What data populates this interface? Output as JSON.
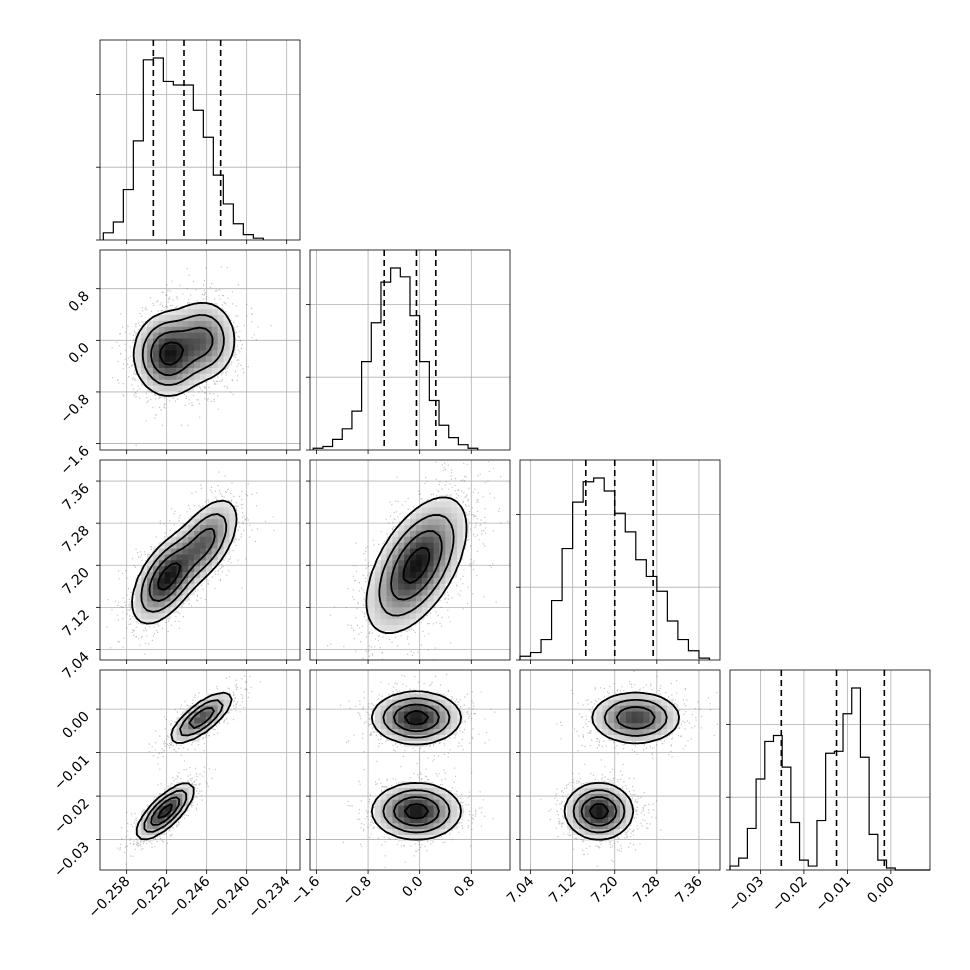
{
  "chart_data": {
    "type": "corner",
    "grid": true,
    "parameters": [
      {
        "index": 0,
        "range": [
          -0.262,
          -0.232
        ],
        "ticks": [
          -0.258,
          -0.252,
          -0.246,
          -0.24,
          -0.234
        ],
        "tick_labels": [
          "−0.258",
          "−0.252",
          "−0.246",
          "−0.240",
          "−0.234"
        ],
        "quantiles": [
          -0.254,
          -0.2494,
          -0.2439
        ],
        "histogram": {
          "edges_start": -0.2615,
          "bin_width": 0.0015,
          "counts": [
            4,
            10,
            28,
            55,
            100,
            101,
            88,
            86,
            86,
            72,
            57,
            36,
            20,
            9,
            3,
            1
          ]
        }
      },
      {
        "index": 1,
        "range": [
          -1.7,
          1.4
        ],
        "ticks": [
          -1.6,
          -0.8,
          0.0,
          0.8
        ],
        "tick_labels": [
          "−1.6",
          "−0.8",
          "0.0",
          "0.8"
        ],
        "quantiles": [
          -0.55,
          -0.05,
          0.25
        ],
        "histogram": {
          "edges_start": -1.65,
          "bin_width": 0.15,
          "counts": [
            1,
            2,
            6,
            12,
            22,
            50,
            72,
            95,
            103,
            98,
            76,
            50,
            28,
            14,
            7,
            3,
            1
          ]
        }
      },
      {
        "index": 2,
        "range": [
          7.02,
          7.4
        ],
        "ticks": [
          7.04,
          7.12,
          7.2,
          7.28,
          7.36
        ],
        "tick_labels": [
          "7.04",
          "7.12",
          "7.20",
          "7.28",
          "7.36"
        ],
        "quantiles": [
          7.145,
          7.2,
          7.273
        ],
        "histogram": {
          "edges_start": 7.02,
          "bin_width": 0.02,
          "counts": [
            2,
            4,
            11,
            32,
            60,
            85,
            96,
            98,
            91,
            79,
            69,
            54,
            45,
            37,
            21,
            11,
            5,
            1
          ]
        }
      },
      {
        "index": 3,
        "range": [
          -0.037,
          0.009
        ],
        "ticks": [
          -0.03,
          -0.02,
          -0.01,
          0.0
        ],
        "tick_labels": [
          "−0.03",
          "−0.02",
          "−0.01",
          "0.00"
        ],
        "quantiles": [
          -0.0252,
          -0.0125,
          -0.0015
        ],
        "histogram": {
          "edges_start": -0.037,
          "bin_width": 0.002,
          "counts": [
            2,
            6,
            21,
            46,
            65,
            68,
            52,
            24,
            5,
            2,
            25,
            59,
            60,
            79,
            92,
            57,
            18,
            5,
            1,
            0,
            0,
            0,
            0
          ]
        }
      }
    ],
    "pairs": [
      {
        "x": 0,
        "y": 1,
        "modes": [
          {
            "weight": 0.6,
            "mean": [
              -0.2518,
              -0.22
            ],
            "sd": [
              0.0024,
              0.3
            ],
            "rho": 0.0
          },
          {
            "weight": 0.4,
            "mean": [
              -0.2465,
              0.0
            ],
            "sd": [
              0.0024,
              0.3
            ],
            "rho": 0.0
          }
        ],
        "levels": [
          0.85,
          0.55,
          0.28,
          0.1
        ]
      },
      {
        "x": 0,
        "y": 2,
        "modes": [
          {
            "weight": 0.6,
            "mean": [
              -0.252,
              7.175
            ],
            "sd": [
              0.0024,
              0.04
            ],
            "rho": 0.55
          },
          {
            "weight": 0.4,
            "mean": [
              -0.2462,
              7.245
            ],
            "sd": [
              0.0024,
              0.04
            ],
            "rho": 0.55
          }
        ],
        "levels": [
          0.85,
          0.55,
          0.28,
          0.1
        ]
      },
      {
        "x": 0,
        "y": 3,
        "modes": [
          {
            "weight": 0.55,
            "mean": [
              -0.2522,
              -0.0235
            ],
            "sd": [
              0.002,
              0.003
            ],
            "rho": 0.75
          },
          {
            "weight": 0.45,
            "mean": [
              -0.2468,
              -0.002
            ],
            "sd": [
              0.0022,
              0.0028
            ],
            "rho": 0.75
          }
        ],
        "levels": [
          0.85,
          0.55,
          0.28,
          0.1
        ]
      },
      {
        "x": 1,
        "y": 2,
        "modes": [
          {
            "weight": 1.0,
            "mean": [
              -0.05,
              7.2
            ],
            "sd": [
              0.36,
              0.06
            ],
            "rho": 0.55
          }
        ],
        "levels": [
          0.85,
          0.55,
          0.28,
          0.1
        ]
      },
      {
        "x": 1,
        "y": 3,
        "modes": [
          {
            "weight": 0.5,
            "mean": [
              -0.05,
              -0.0235
            ],
            "sd": [
              0.32,
              0.003
            ],
            "rho": 0.0
          },
          {
            "weight": 0.5,
            "mean": [
              -0.05,
              -0.002
            ],
            "sd": [
              0.32,
              0.0028
            ],
            "rho": 0.0
          }
        ],
        "levels": [
          0.85,
          0.55,
          0.28,
          0.1
        ]
      },
      {
        "x": 2,
        "y": 3,
        "modes": [
          {
            "weight": 0.55,
            "mean": [
              7.17,
              -0.0235
            ],
            "sd": [
              0.03,
              0.003
            ],
            "rho": 0.0
          },
          {
            "weight": 0.45,
            "mean": [
              7.24,
              -0.002
            ],
            "sd": [
              0.04,
              0.0028
            ],
            "rho": 0.0
          }
        ],
        "levels": [
          0.85,
          0.55,
          0.28,
          0.1
        ]
      }
    ]
  }
}
